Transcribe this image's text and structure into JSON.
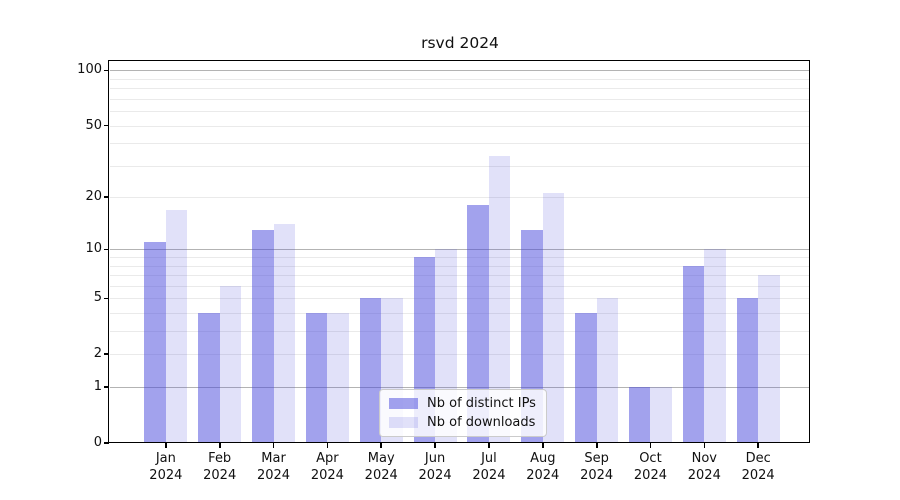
{
  "title": "rsvd 2024",
  "chart_data": {
    "type": "bar",
    "title": "rsvd 2024",
    "categories": [
      "Jan 2024",
      "Feb 2024",
      "Mar 2024",
      "Apr 2024",
      "May 2024",
      "Jun 2024",
      "Jul 2024",
      "Aug 2024",
      "Sep 2024",
      "Oct 2024",
      "Nov 2024",
      "Dec 2024"
    ],
    "series": [
      {
        "name": "Nb of distinct IPs",
        "values": [
          11,
          4,
          13,
          4,
          5,
          9,
          18,
          13,
          4,
          1,
          8,
          5
        ],
        "color": "rgba(70,70,220,0.50)"
      },
      {
        "name": "Nb of downloads",
        "values": [
          17,
          6,
          14,
          4,
          5,
          10,
          34,
          21,
          5,
          1,
          10,
          7
        ],
        "color": "rgba(70,70,220,0.16)"
      }
    ],
    "xlabel": "",
    "ylabel": "",
    "y_axis": {
      "scale": "log1p",
      "ylim": [
        0,
        111
      ],
      "tick_values": [
        0,
        1,
        2,
        5,
        10,
        20,
        50,
        100
      ],
      "major_gridlines": [
        1,
        10,
        100
      ],
      "minor_gridlines": [
        2,
        3,
        4,
        5,
        6,
        7,
        8,
        9,
        20,
        30,
        40,
        50,
        60,
        70,
        80,
        90
      ]
    },
    "grid": true,
    "legend_position": "lower center"
  },
  "colors": {
    "grid_major": "#b3b3b3",
    "grid_minor": "#eaeaea",
    "axis": "#000000",
    "text": "#111111",
    "background": "#ffffff"
  }
}
